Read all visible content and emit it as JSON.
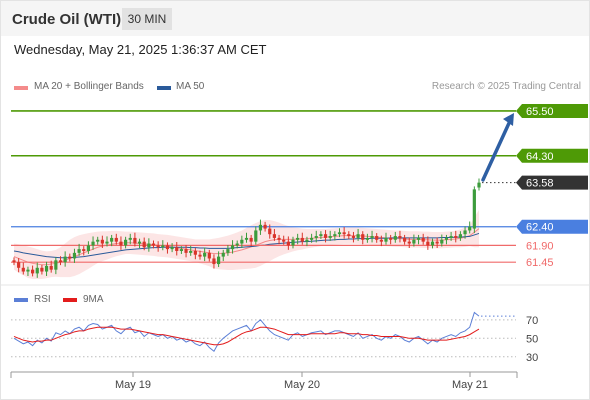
{
  "header": {
    "title": "Crude Oil (WTI)",
    "timeframe": "30 MIN"
  },
  "timestamp": "Wednesday, May 21, 2025 1:36:37 AM CET",
  "copyright": "Research © 2025 Trading Central",
  "colors": {
    "bollinger": "#f48b8b",
    "ma50": "#2a5a9a",
    "resistance": "#4e9a06",
    "pivot": "#4a7fe0",
    "support": "#f06a6a",
    "up_candle": "#3c9c3c",
    "down_candle": "#d9342b",
    "rsi": "#5b7fd6",
    "rsi_ma": "#e31c1c",
    "arrow": "#2e5fa3"
  },
  "chart_data": [
    {
      "type": "candlestick",
      "legend": [
        {
          "name": "MA 20 + Bollinger Bands",
          "color": "#f48b8b"
        },
        {
          "name": "MA 50",
          "color": "#2a5a9a"
        }
      ],
      "x_ticks": [
        "May 19",
        "May 20",
        "May 21"
      ],
      "ylim": [
        61.0,
        65.9
      ],
      "levels": [
        {
          "value": 65.5,
          "label": "65.50",
          "kind": "resistance"
        },
        {
          "value": 64.3,
          "label": "64.30",
          "kind": "resistance"
        },
        {
          "value": 62.4,
          "label": "62.40",
          "kind": "pivot"
        },
        {
          "value": 61.9,
          "label": "61.90",
          "kind": "support"
        },
        {
          "value": 61.45,
          "label": "61.45",
          "kind": "support"
        }
      ],
      "last_price": {
        "value": 63.58,
        "label": "63.58"
      },
      "projection": {
        "from": 63.6,
        "to": 65.5
      },
      "closes": [
        61.45,
        61.3,
        61.2,
        61.25,
        61.15,
        61.3,
        61.2,
        61.35,
        61.25,
        61.5,
        61.45,
        61.6,
        61.55,
        61.7,
        61.8,
        61.75,
        61.9,
        62.0,
        62.05,
        61.95,
        62.0,
        62.1,
        62.0,
        61.9,
        62.05,
        62.1,
        61.95,
        62.0,
        61.85,
        61.95,
        61.9,
        61.85,
        61.9,
        61.8,
        61.85,
        61.75,
        61.8,
        61.7,
        61.75,
        61.65,
        61.6,
        61.7,
        61.55,
        61.4,
        61.6,
        61.7,
        61.8,
        61.9,
        61.95,
        62.05,
        62.1,
        62.0,
        62.3,
        62.45,
        62.35,
        62.2,
        62.1,
        62.05,
        62.0,
        61.9,
        62.05,
        62.1,
        62.0,
        62.05,
        62.1,
        62.15,
        62.2,
        62.1,
        62.15,
        62.2,
        62.25,
        62.2,
        62.15,
        62.1,
        62.2,
        62.05,
        62.1,
        62.15,
        62.05,
        62.0,
        62.1,
        62.05,
        62.15,
        62.1,
        62.0,
        61.95,
        62.05,
        62.1,
        62.0,
        61.9,
        62.0,
        61.95,
        62.05,
        62.1,
        62.15,
        62.1,
        62.2,
        62.3,
        62.4,
        63.4,
        63.58
      ],
      "opens": [
        61.5,
        61.45,
        61.3,
        61.2,
        61.25,
        61.15,
        61.3,
        61.2,
        61.35,
        61.25,
        61.5,
        61.45,
        61.6,
        61.55,
        61.7,
        61.8,
        61.75,
        61.9,
        62.0,
        62.05,
        61.95,
        62.0,
        62.1,
        62.0,
        61.9,
        62.05,
        62.1,
        61.95,
        62.0,
        61.85,
        61.95,
        61.9,
        61.85,
        61.9,
        61.8,
        61.85,
        61.75,
        61.8,
        61.7,
        61.75,
        61.65,
        61.6,
        61.7,
        61.55,
        61.4,
        61.6,
        61.7,
        61.8,
        61.9,
        61.95,
        62.05,
        62.1,
        62.0,
        62.3,
        62.45,
        62.35,
        62.2,
        62.1,
        62.05,
        62.0,
        61.9,
        62.05,
        62.1,
        62.0,
        62.05,
        62.1,
        62.15,
        62.2,
        62.1,
        62.15,
        62.2,
        62.25,
        62.2,
        62.15,
        62.1,
        62.2,
        62.05,
        62.1,
        62.15,
        62.05,
        62.0,
        62.1,
        62.05,
        62.15,
        62.1,
        62.0,
        61.95,
        62.05,
        62.1,
        62.0,
        61.9,
        62.0,
        61.95,
        62.05,
        62.1,
        62.15,
        62.1,
        62.2,
        62.3,
        62.35,
        63.45
      ],
      "ma20": [
        61.6,
        61.55,
        61.5,
        61.45,
        61.42,
        61.4,
        61.38,
        61.38,
        61.4,
        61.42,
        61.45,
        61.5,
        61.55,
        61.6,
        61.65,
        61.7,
        61.75,
        61.8,
        61.85,
        61.88,
        61.9,
        61.93,
        61.95,
        61.96,
        61.97,
        61.97,
        61.96,
        61.95,
        61.94,
        61.93,
        61.92,
        61.9,
        61.89,
        61.88,
        61.86,
        61.84,
        61.82,
        61.8,
        61.78,
        61.76,
        61.74,
        61.72,
        61.7,
        61.68,
        61.68,
        61.69,
        61.7,
        61.72,
        61.75,
        61.78,
        61.82,
        61.86,
        61.9,
        61.95,
        62.0,
        62.03,
        62.05,
        62.06,
        62.06,
        62.06,
        62.06,
        62.07,
        62.07,
        62.08,
        62.09,
        62.1,
        62.11,
        62.12,
        62.13,
        62.14,
        62.15,
        62.16,
        62.16,
        62.16,
        62.16,
        62.15,
        62.14,
        62.13,
        62.12,
        62.11,
        62.1,
        62.09,
        62.08,
        62.08,
        62.07,
        62.06,
        62.06,
        62.06,
        62.05,
        62.05,
        62.04,
        62.04,
        62.04,
        62.05,
        62.06,
        62.07,
        62.09,
        62.12,
        62.16,
        62.25,
        62.35
      ],
      "ma50": [
        61.75,
        61.73,
        61.7,
        61.68,
        61.66,
        61.64,
        61.62,
        61.6,
        61.59,
        61.58,
        61.57,
        61.57,
        61.57,
        61.58,
        61.59,
        61.6,
        61.62,
        61.64,
        61.66,
        61.68,
        61.7,
        61.72,
        61.74,
        61.76,
        61.78,
        61.79,
        61.8,
        61.81,
        61.82,
        61.83,
        61.84,
        61.84,
        61.85,
        61.85,
        61.85,
        61.85,
        61.85,
        61.85,
        61.84,
        61.84,
        61.83,
        61.83,
        61.82,
        61.82,
        61.82,
        61.82,
        61.82,
        61.83,
        61.84,
        61.85,
        61.86,
        61.87,
        61.88,
        61.9,
        61.91,
        61.93,
        61.94,
        61.95,
        61.96,
        61.97,
        61.98,
        61.99,
        62.0,
        62.0,
        62.01,
        62.02,
        62.03,
        62.04,
        62.04,
        62.05,
        62.06,
        62.06,
        62.07,
        62.07,
        62.08,
        62.08,
        62.08,
        62.09,
        62.09,
        62.09,
        62.09,
        62.1,
        62.1,
        62.1,
        62.1,
        62.1,
        62.1,
        62.1,
        62.1,
        62.1,
        62.1,
        62.1,
        62.11,
        62.11,
        62.11,
        62.12,
        62.12,
        62.13,
        62.14,
        62.18,
        62.22
      ],
      "bb_width": [
        0.35,
        0.38,
        0.4,
        0.42,
        0.42,
        0.4,
        0.38,
        0.36,
        0.35,
        0.36,
        0.4,
        0.45,
        0.5,
        0.52,
        0.52,
        0.5,
        0.48,
        0.45,
        0.42,
        0.4,
        0.38,
        0.36,
        0.34,
        0.32,
        0.3,
        0.3,
        0.3,
        0.3,
        0.3,
        0.3,
        0.3,
        0.3,
        0.3,
        0.3,
        0.3,
        0.3,
        0.3,
        0.3,
        0.3,
        0.3,
        0.32,
        0.34,
        0.36,
        0.4,
        0.42,
        0.44,
        0.46,
        0.48,
        0.5,
        0.52,
        0.55,
        0.58,
        0.6,
        0.6,
        0.58,
        0.55,
        0.5,
        0.45,
        0.4,
        0.36,
        0.32,
        0.3,
        0.28,
        0.26,
        0.25,
        0.24,
        0.23,
        0.22,
        0.22,
        0.22,
        0.22,
        0.22,
        0.22,
        0.22,
        0.22,
        0.22,
        0.22,
        0.22,
        0.22,
        0.22,
        0.22,
        0.22,
        0.22,
        0.22,
        0.22,
        0.22,
        0.22,
        0.22,
        0.22,
        0.22,
        0.22,
        0.22,
        0.22,
        0.22,
        0.22,
        0.22,
        0.24,
        0.26,
        0.28,
        0.4,
        0.5
      ]
    },
    {
      "type": "line",
      "legend": [
        {
          "name": "RSI",
          "color": "#5b7fd6"
        },
        {
          "name": "9MA",
          "color": "#e31c1c"
        }
      ],
      "y_ticks": [
        "70",
        "50",
        "30"
      ],
      "ylim": [
        20,
        85
      ],
      "rsi": [
        50,
        47,
        44,
        46,
        42,
        48,
        45,
        50,
        47,
        56,
        54,
        58,
        55,
        60,
        62,
        58,
        64,
        66,
        65,
        60,
        62,
        64,
        58,
        55,
        60,
        62,
        56,
        58,
        52,
        56,
        54,
        52,
        54,
        50,
        52,
        48,
        50,
        46,
        48,
        44,
        42,
        46,
        40,
        36,
        45,
        50,
        54,
        58,
        60,
        62,
        64,
        58,
        66,
        70,
        64,
        58,
        54,
        52,
        50,
        48,
        54,
        56,
        52,
        54,
        56,
        57,
        58,
        54,
        56,
        58,
        58,
        56,
        54,
        52,
        56,
        50,
        52,
        54,
        50,
        48,
        52,
        50,
        54,
        52,
        48,
        46,
        50,
        52,
        48,
        44,
        48,
        46,
        50,
        52,
        54,
        52,
        56,
        58,
        62,
        78,
        74
      ],
      "rsi_ma": [
        52,
        50,
        48,
        47,
        46,
        47,
        47,
        48,
        48,
        50,
        52,
        54,
        55,
        57,
        58,
        58,
        60,
        61,
        62,
        62,
        62,
        62,
        61,
        60,
        60,
        60,
        59,
        58,
        57,
        56,
        55,
        54,
        54,
        53,
        52,
        51,
        50,
        49,
        48,
        47,
        46,
        45,
        44,
        43,
        43,
        44,
        46,
        49,
        52,
        55,
        57,
        58,
        60,
        62,
        62,
        61,
        60,
        58,
        56,
        54,
        54,
        54,
        54,
        54,
        55,
        55,
        55,
        55,
        55,
        55,
        56,
        56,
        55,
        55,
        55,
        54,
        54,
        53,
        53,
        52,
        52,
        52,
        52,
        52,
        51,
        50,
        50,
        50,
        49,
        48,
        48,
        48,
        48,
        48,
        49,
        50,
        51,
        52,
        54,
        57,
        60
      ],
      "rsi_last": 74
    }
  ]
}
